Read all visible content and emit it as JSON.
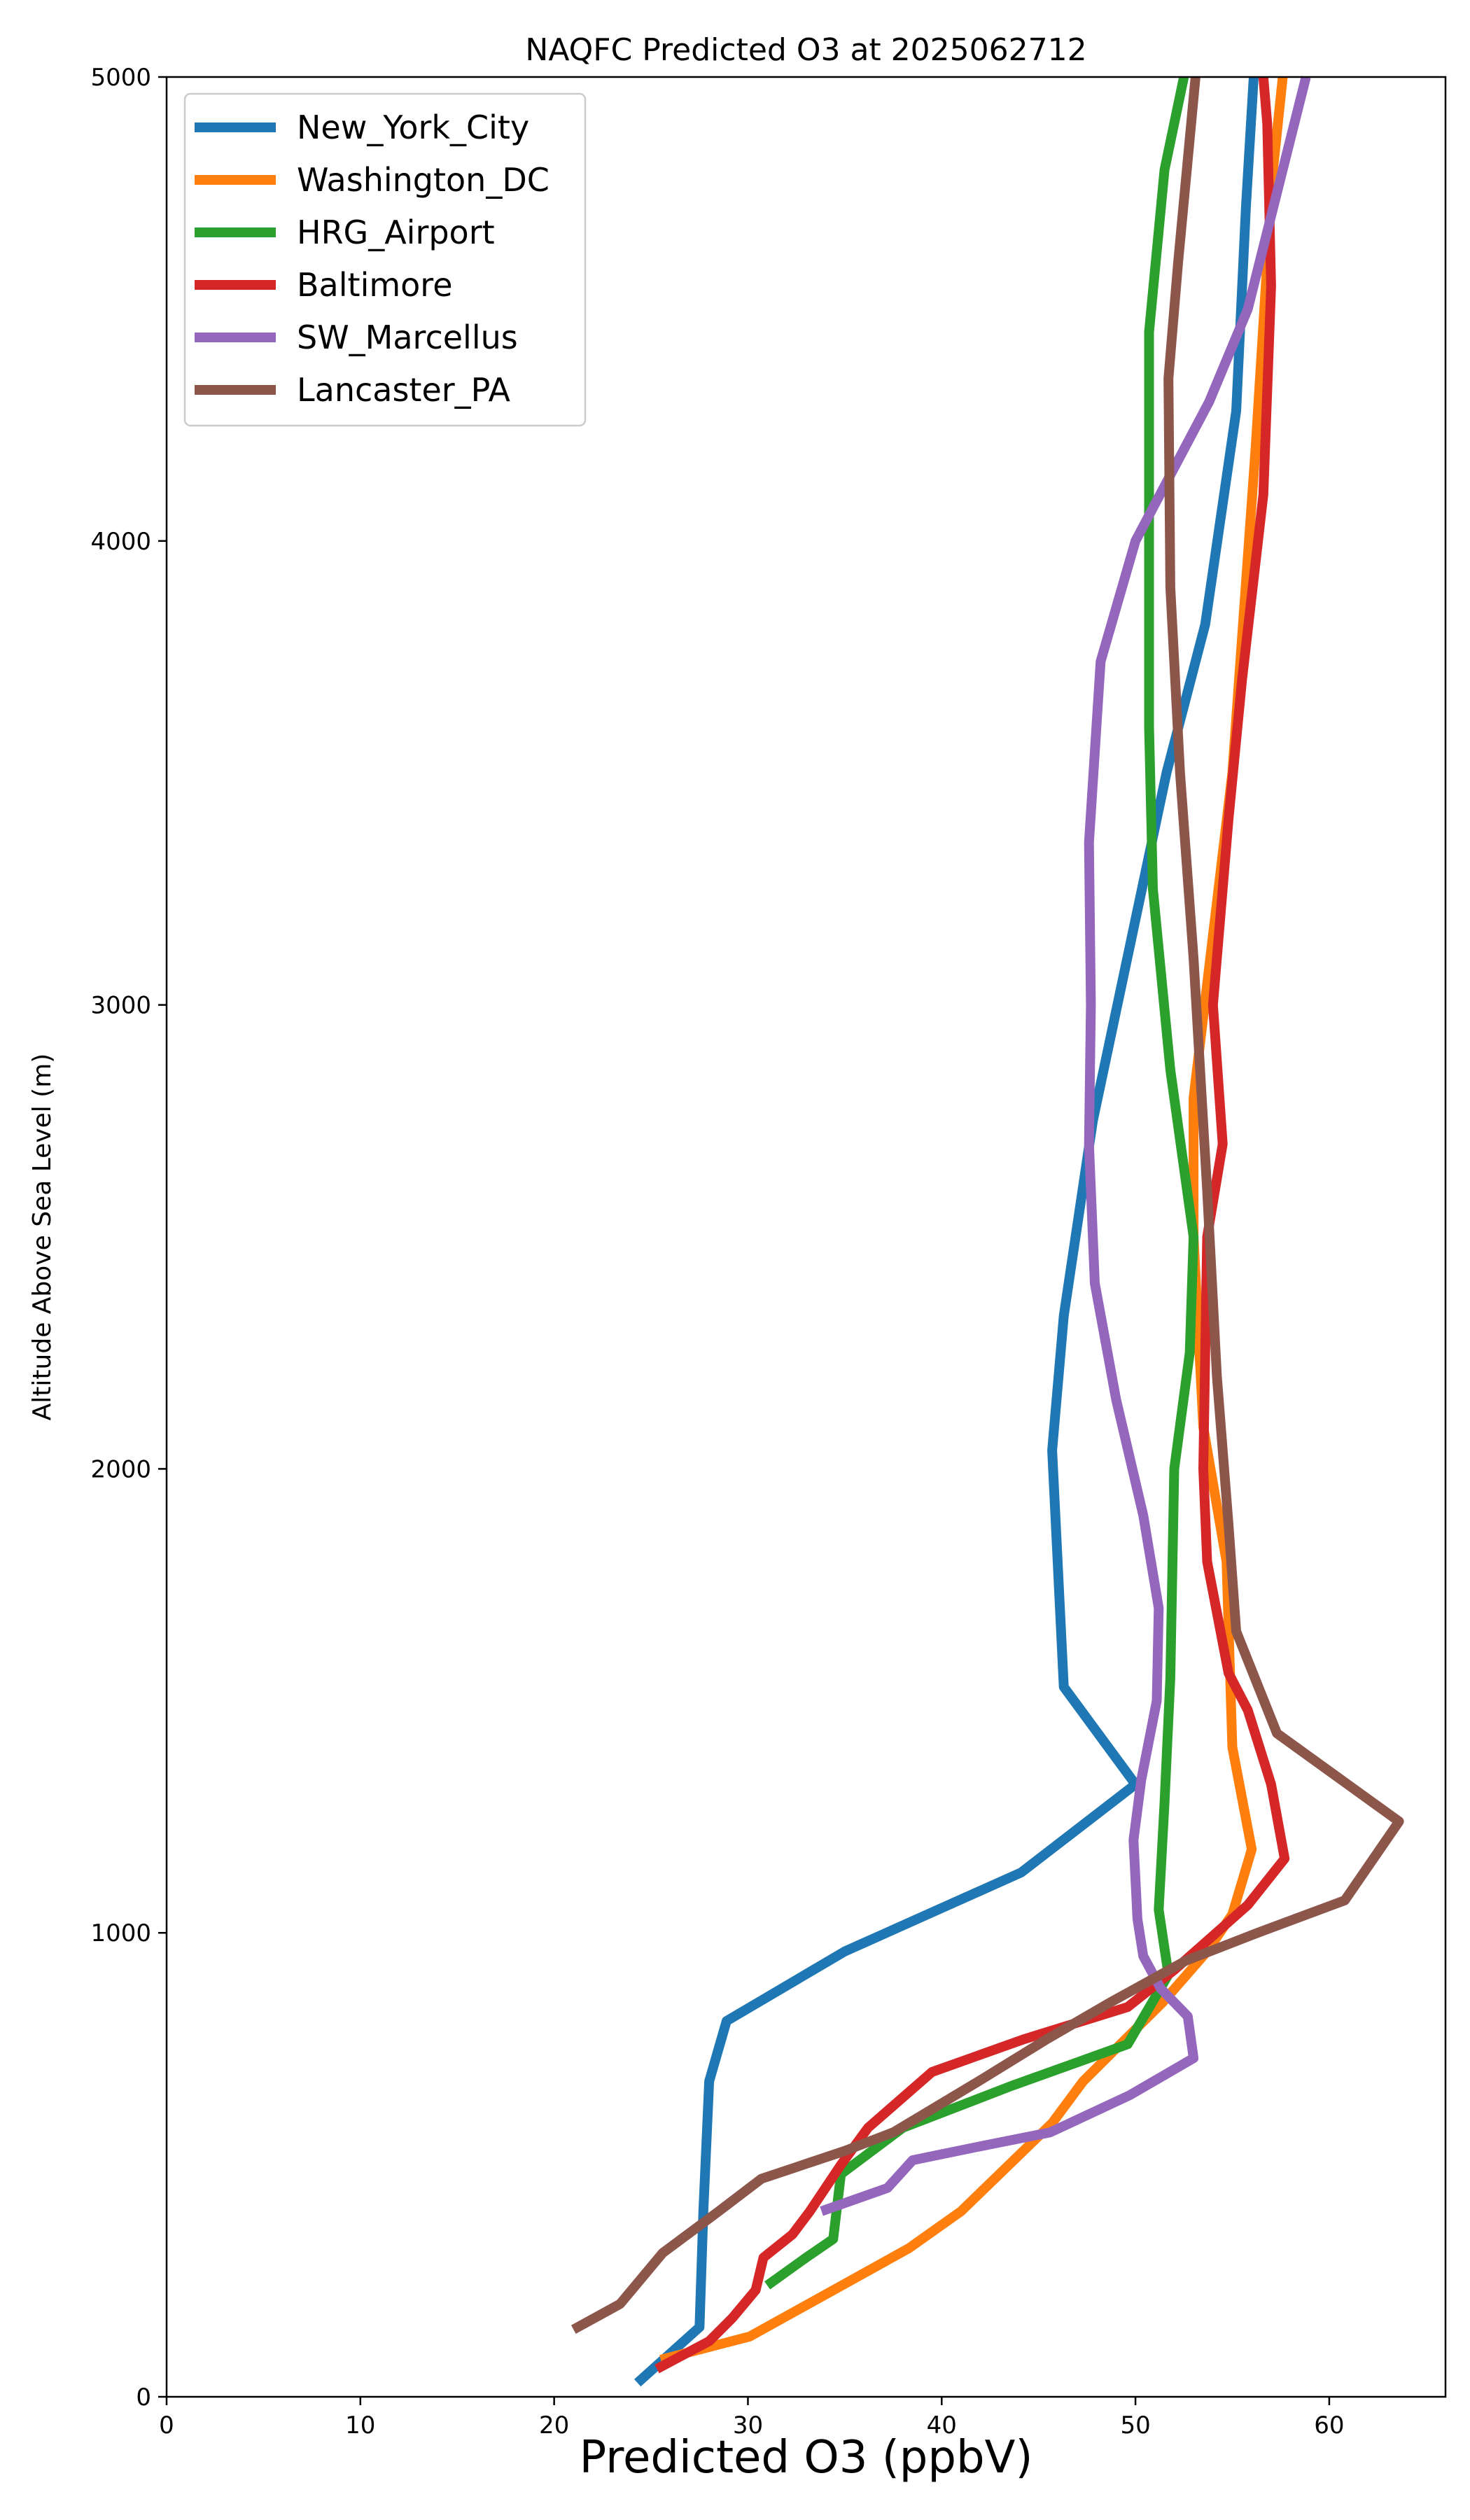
{
  "chart_data": {
    "type": "line",
    "title": "NAQFC Predicted O3 at 2025062712",
    "xlabel": "Predicted O3 (ppbV)",
    "ylabel": "Altitude Above Sea Level (m)",
    "xlim": [
      0,
      66
    ],
    "ylim": [
      0,
      5000
    ],
    "xticks": [
      0,
      10,
      20,
      30,
      40,
      50,
      60
    ],
    "yticks": [
      0,
      1000,
      2000,
      3000,
      4000,
      5000
    ],
    "grid": false,
    "legend_position": "upper-left",
    "series": [
      {
        "name": "New_York_City",
        "color": "#1f77b4",
        "points": [
          [
            24.3,
            30
          ],
          [
            27.5,
            150
          ],
          [
            27.7,
            400
          ],
          [
            28.0,
            680
          ],
          [
            28.9,
            810
          ],
          [
            35.0,
            960
          ],
          [
            44.1,
            1130
          ],
          [
            50.0,
            1320
          ],
          [
            46.3,
            1530
          ],
          [
            45.7,
            2040
          ],
          [
            46.3,
            2330
          ],
          [
            47.8,
            2750
          ],
          [
            51.6,
            3500
          ],
          [
            53.6,
            3820
          ],
          [
            55.2,
            4280
          ],
          [
            55.7,
            4720
          ],
          [
            56.1,
            5000
          ]
        ]
      },
      {
        "name": "Washington_DC",
        "color": "#ff7f0e",
        "points": [
          [
            25.5,
            80
          ],
          [
            30.1,
            130
          ],
          [
            38.3,
            320
          ],
          [
            41.0,
            400
          ],
          [
            45.7,
            590
          ],
          [
            47.3,
            680
          ],
          [
            51.4,
            850
          ],
          [
            53.7,
            960
          ],
          [
            55.0,
            1040
          ],
          [
            56.0,
            1180
          ],
          [
            55.0,
            1400
          ],
          [
            54.7,
            1800
          ],
          [
            53.5,
            2090
          ],
          [
            53.0,
            2500
          ],
          [
            53.0,
            2800
          ],
          [
            55.0,
            3500
          ],
          [
            56.2,
            4200
          ],
          [
            57.1,
            4800
          ],
          [
            57.6,
            5000
          ]
        ]
      },
      {
        "name": "HRG_Airport",
        "color": "#2ca02c",
        "points": [
          [
            31.0,
            240
          ],
          [
            33.0,
            300
          ],
          [
            34.4,
            340
          ],
          [
            34.8,
            480
          ],
          [
            38.0,
            580
          ],
          [
            43.6,
            670
          ],
          [
            49.6,
            760
          ],
          [
            51.7,
            910
          ],
          [
            51.2,
            1050
          ],
          [
            51.5,
            1280
          ],
          [
            51.8,
            1550
          ],
          [
            52.0,
            2000
          ],
          [
            52.8,
            2250
          ],
          [
            53.0,
            2500
          ],
          [
            51.8,
            2860
          ],
          [
            50.9,
            3250
          ],
          [
            50.7,
            3600
          ],
          [
            50.7,
            4450
          ],
          [
            51.5,
            4800
          ],
          [
            52.5,
            5000
          ]
        ]
      },
      {
        "name": "Baltimore",
        "color": "#d62728",
        "points": [
          [
            25.3,
            60
          ],
          [
            28.0,
            120
          ],
          [
            29.2,
            170
          ],
          [
            30.4,
            230
          ],
          [
            30.8,
            300
          ],
          [
            32.3,
            350
          ],
          [
            33.2,
            400
          ],
          [
            34.8,
            500
          ],
          [
            36.2,
            580
          ],
          [
            39.5,
            700
          ],
          [
            44.2,
            770
          ],
          [
            49.6,
            840
          ],
          [
            52.0,
            920
          ],
          [
            55.8,
            1060
          ],
          [
            57.7,
            1160
          ],
          [
            57.0,
            1320
          ],
          [
            55.8,
            1480
          ],
          [
            54.8,
            1560
          ],
          [
            53.7,
            1800
          ],
          [
            53.5,
            2000
          ],
          [
            53.7,
            2500
          ],
          [
            54.5,
            2700
          ],
          [
            54.0,
            3000
          ],
          [
            54.8,
            3400
          ],
          [
            55.5,
            3700
          ],
          [
            56.6,
            4100
          ],
          [
            57.0,
            4550
          ],
          [
            56.8,
            4900
          ],
          [
            56.6,
            5000
          ]
        ]
      },
      {
        "name": "SW_Marcellus",
        "color": "#9467bd",
        "points": [
          [
            33.8,
            400
          ],
          [
            37.2,
            450
          ],
          [
            38.5,
            510
          ],
          [
            42.0,
            540
          ],
          [
            45.6,
            570
          ],
          [
            49.7,
            650
          ],
          [
            53.0,
            730
          ],
          [
            52.7,
            820
          ],
          [
            51.3,
            880
          ],
          [
            50.4,
            950
          ],
          [
            50.1,
            1030
          ],
          [
            49.9,
            1200
          ],
          [
            50.3,
            1330
          ],
          [
            51.1,
            1500
          ],
          [
            51.2,
            1700
          ],
          [
            50.4,
            1900
          ],
          [
            49.0,
            2150
          ],
          [
            47.9,
            2400
          ],
          [
            47.6,
            2700
          ],
          [
            47.7,
            3000
          ],
          [
            47.6,
            3350
          ],
          [
            48.2,
            3740
          ],
          [
            50.0,
            4000
          ],
          [
            53.8,
            4300
          ],
          [
            55.8,
            4500
          ],
          [
            58.8,
            5000
          ]
        ]
      },
      {
        "name": "Lancaster_PA",
        "color": "#8c564b",
        "points": [
          [
            21.0,
            145
          ],
          [
            23.4,
            200
          ],
          [
            25.6,
            310
          ],
          [
            28.5,
            400
          ],
          [
            30.7,
            470
          ],
          [
            35.0,
            530
          ],
          [
            37.5,
            570
          ],
          [
            41.9,
            680
          ],
          [
            45.4,
            770
          ],
          [
            48.7,
            850
          ],
          [
            52.6,
            940
          ],
          [
            56.3,
            1000
          ],
          [
            60.8,
            1070
          ],
          [
            63.6,
            1240
          ],
          [
            57.3,
            1430
          ],
          [
            55.2,
            1650
          ],
          [
            54.8,
            1880
          ],
          [
            54.2,
            2200
          ],
          [
            53.7,
            2600
          ],
          [
            53.0,
            3100
          ],
          [
            52.3,
            3500
          ],
          [
            51.8,
            3900
          ],
          [
            51.7,
            4350
          ],
          [
            52.2,
            4600
          ],
          [
            53.1,
            5000
          ]
        ]
      }
    ]
  }
}
